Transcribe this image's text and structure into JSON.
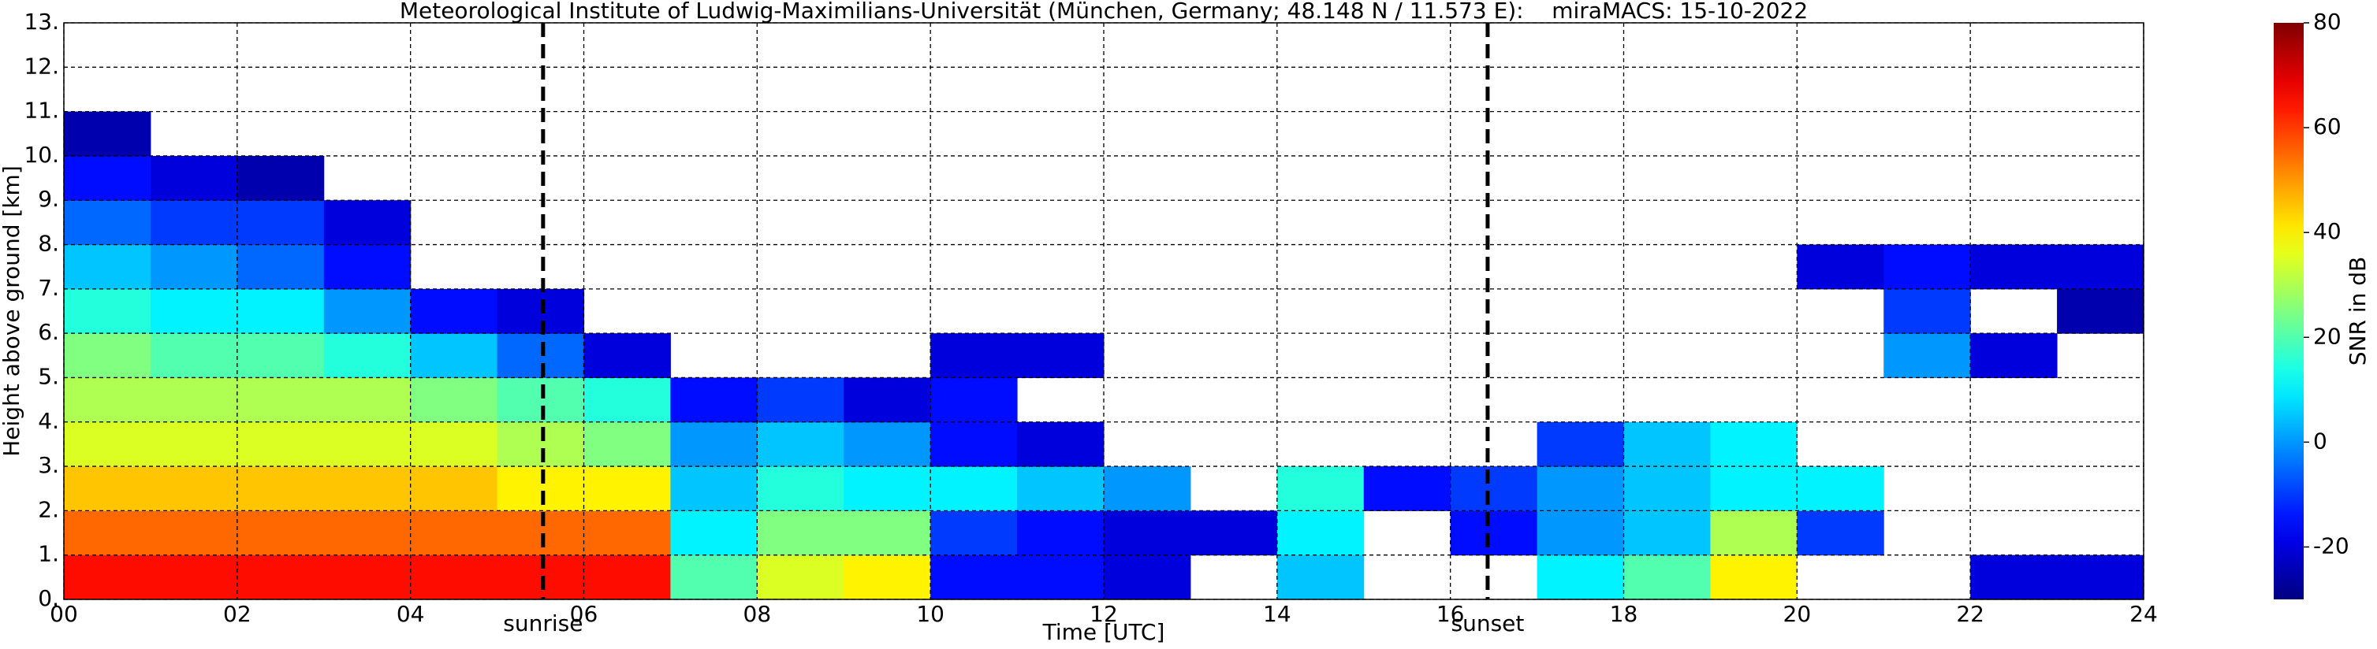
{
  "chart_data": {
    "type": "heatmap",
    "title": "Meteorological Institute of Ludwig-Maximilians-Universität (München, Germany; 48.148 N / 11.573 E):    miraMACS: 15-10-2022",
    "xlabel": "Time [UTC]",
    "ylabel": "Height above ground [km]",
    "xlim": [
      0,
      24
    ],
    "ylim": [
      0,
      13
    ],
    "xticks": [
      {
        "value": 0,
        "label": "00"
      },
      {
        "value": 2,
        "label": "02"
      },
      {
        "value": 4,
        "label": "04"
      },
      {
        "value": 6,
        "label": "06"
      },
      {
        "value": 8,
        "label": "08"
      },
      10,
      12,
      14,
      16,
      18,
      20,
      22,
      24
    ],
    "yticks": [
      {
        "value": 0,
        "label": "0."
      },
      {
        "value": 1,
        "label": "1."
      },
      {
        "value": 2,
        "label": "2."
      },
      {
        "value": 3,
        "label": "3."
      },
      {
        "value": 4,
        "label": "4."
      },
      {
        "value": 5,
        "label": "5."
      },
      {
        "value": 6,
        "label": "6."
      },
      {
        "value": 7,
        "label": "7."
      },
      {
        "value": 8,
        "label": "8."
      },
      {
        "value": 9,
        "label": "9."
      },
      {
        "value": 10,
        "label": "10."
      },
      {
        "value": 11,
        "label": "11."
      },
      {
        "value": 12,
        "label": "12."
      },
      {
        "value": 13,
        "label": "13."
      }
    ],
    "grid": true,
    "x": [
      0,
      1,
      2,
      3,
      4,
      5,
      6,
      7,
      8,
      9,
      10,
      11,
      12,
      13,
      14,
      15,
      16,
      17,
      18,
      19,
      20,
      21,
      22,
      23,
      24
    ],
    "y": [
      0,
      1,
      2,
      3,
      4,
      5,
      6,
      7,
      8,
      9,
      10,
      11,
      12,
      13
    ],
    "z": [
      [
        65,
        65,
        65,
        65,
        65,
        65,
        65,
        20,
        35,
        40,
        -15,
        -15,
        -20,
        null,
        5,
        null,
        null,
        10,
        20,
        40,
        null,
        null,
        -20,
        -20
      ],
      [
        55,
        55,
        55,
        55,
        55,
        55,
        55,
        10,
        25,
        25,
        -10,
        -15,
        -20,
        -20,
        10,
        null,
        -15,
        0,
        5,
        30,
        -10,
        null,
        null,
        null
      ],
      [
        45,
        45,
        45,
        45,
        45,
        40,
        40,
        5,
        15,
        10,
        10,
        5,
        0,
        null,
        15,
        -15,
        -10,
        0,
        5,
        10,
        10,
        null,
        null,
        null
      ],
      [
        35,
        35,
        35,
        35,
        35,
        30,
        25,
        0,
        5,
        0,
        -15,
        -20,
        null,
        null,
        null,
        null,
        null,
        -10,
        5,
        10,
        null,
        null,
        null,
        null
      ],
      [
        30,
        30,
        30,
        30,
        25,
        20,
        15,
        -15,
        -10,
        -20,
        -15,
        null,
        null,
        null,
        null,
        null,
        null,
        null,
        null,
        null,
        null,
        null,
        null,
        null
      ],
      [
        25,
        20,
        20,
        15,
        5,
        -5,
        -20,
        null,
        null,
        null,
        -20,
        -20,
        null,
        null,
        null,
        null,
        null,
        null,
        null,
        null,
        null,
        0,
        -20,
        null
      ],
      [
        15,
        10,
        10,
        0,
        -15,
        -20,
        null,
        null,
        null,
        null,
        null,
        null,
        null,
        null,
        null,
        null,
        null,
        null,
        null,
        null,
        null,
        -10,
        null,
        -25
      ],
      [
        5,
        0,
        -5,
        -15,
        null,
        null,
        null,
        null,
        null,
        null,
        null,
        null,
        null,
        null,
        null,
        null,
        null,
        null,
        null,
        null,
        -20,
        -15,
        -20,
        -20
      ],
      [
        -5,
        -10,
        -10,
        -20,
        null,
        null,
        null,
        null,
        null,
        null,
        null,
        null,
        null,
        null,
        null,
        null,
        null,
        null,
        null,
        null,
        null,
        null,
        null,
        null
      ],
      [
        -15,
        -20,
        -25,
        null,
        null,
        null,
        null,
        null,
        null,
        null,
        null,
        null,
        null,
        null,
        null,
        null,
        null,
        null,
        null,
        null,
        null,
        null,
        null,
        null
      ],
      [
        -25,
        null,
        null,
        null,
        null,
        null,
        null,
        null,
        null,
        null,
        null,
        null,
        null,
        null,
        null,
        null,
        null,
        null,
        null,
        null,
        null,
        null,
        null,
        null
      ],
      [
        null,
        null,
        null,
        null,
        null,
        null,
        null,
        null,
        null,
        null,
        null,
        null,
        null,
        null,
        null,
        null,
        null,
        null,
        null,
        null,
        null,
        null,
        null,
        null
      ],
      [
        null,
        null,
        null,
        null,
        null,
        null,
        null,
        null,
        null,
        null,
        null,
        null,
        null,
        null,
        null,
        null,
        null,
        null,
        null,
        null,
        null,
        null,
        null,
        null
      ]
    ],
    "colormap": "jet",
    "clim": [
      -30,
      80
    ],
    "cticks": [
      -20,
      0,
      20,
      40,
      60,
      80
    ],
    "colorbar_label": "SNR in dB",
    "annotations": [
      {
        "text": "sunrise",
        "x": 5.53
      },
      {
        "text": "sunset",
        "x": 16.43
      }
    ]
  }
}
